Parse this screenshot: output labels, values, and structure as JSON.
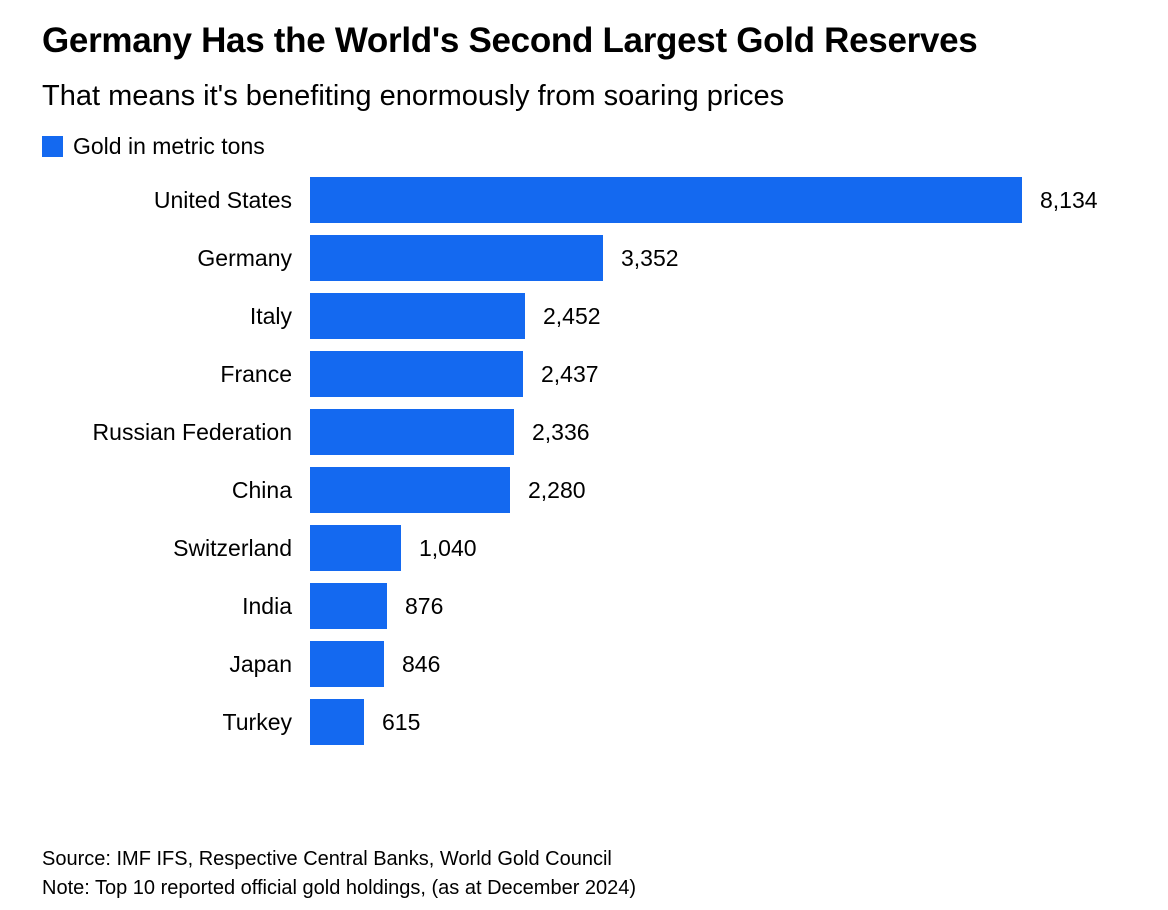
{
  "header": {
    "title": "Germany Has the World's Second Largest Gold Reserves",
    "subtitle": "That means it's benefiting enormously from soaring prices"
  },
  "legend": {
    "label": "Gold in metric tons",
    "swatch_color": "#1469f0"
  },
  "chart_data": {
    "type": "bar",
    "orientation": "horizontal",
    "title": "Germany Has the World's Second Largest Gold Reserves",
    "subtitle": "That means it's benefiting enormously from soaring prices",
    "legend": "Gold in metric tons",
    "legend_position": "top-left",
    "grid": false,
    "unit": "metric tons",
    "categories": [
      "United States",
      "Germany",
      "Italy",
      "France",
      "Russian Federation",
      "China",
      "Switzerland",
      "India",
      "Japan",
      "Turkey"
    ],
    "values": [
      8134,
      3352,
      2452,
      2437,
      2336,
      2280,
      1040,
      876,
      846,
      615
    ],
    "value_labels": [
      "8,134",
      "3,352",
      "2,452",
      "2,437",
      "2,336",
      "2,280",
      "1,040",
      "876",
      "846",
      "615"
    ],
    "xlim": [
      0,
      8134
    ],
    "bar_color": "#1469f0"
  },
  "footer": {
    "source": "Source: IMF IFS, Respective Central Banks, World Gold Council",
    "note": "Note: Top 10 reported official gold holdings, (as at December 2024)"
  }
}
